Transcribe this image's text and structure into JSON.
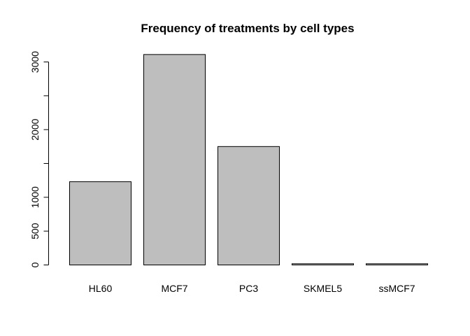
{
  "chart_data": {
    "type": "bar",
    "title": "Frequency of treatments by cell types",
    "categories": [
      "HL60",
      "MCF7",
      "PC3",
      "SKMEL5",
      "ssMCF7"
    ],
    "values": [
      1230,
      3110,
      1750,
      18,
      18
    ],
    "xlabel": "",
    "ylabel": "",
    "ylim": [
      0,
      3000
    ],
    "yticks": [
      0,
      500,
      1000,
      1500,
      2000,
      2500,
      3000
    ],
    "yticks_labeled": [
      0,
      500,
      1000,
      2000,
      3000
    ],
    "bar_color": "#bebebe",
    "grid": false,
    "legend": "none"
  }
}
